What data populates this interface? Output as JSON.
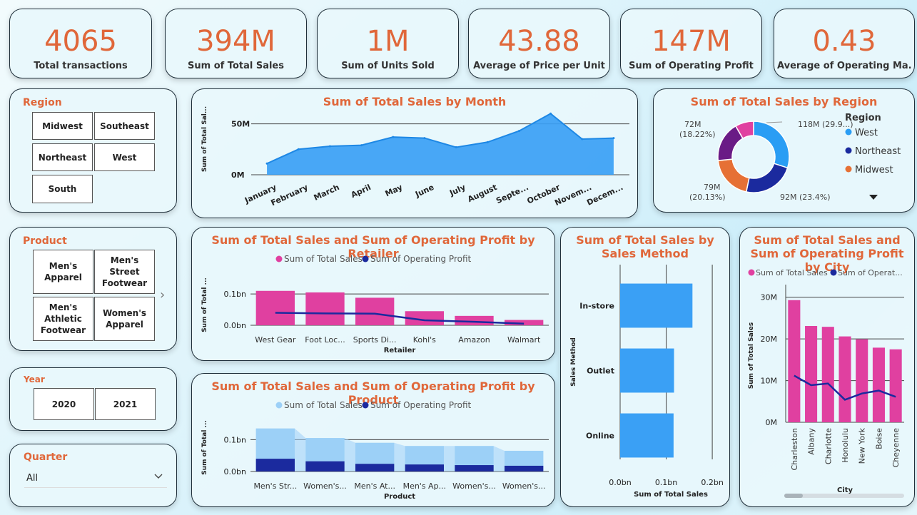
{
  "kpis": [
    {
      "value": "4065",
      "label": "Total transactions"
    },
    {
      "value": "394M",
      "label": "Sum of Total Sales"
    },
    {
      "value": "1M",
      "label": "Sum of Units Sold"
    },
    {
      "value": "43.88",
      "label": "Average of Price per Unit"
    },
    {
      "value": "147M",
      "label": "Sum of Operating Profit"
    },
    {
      "value": "0.43",
      "label": "Average of Operating Ma..."
    }
  ],
  "region_slicer": {
    "title": "Region",
    "options": [
      "Midwest",
      "Southeast",
      "Northeast",
      "West",
      "South"
    ]
  },
  "product_slicer": {
    "title": "Product",
    "options": [
      "Men's Apparel",
      "Men's Street Footwear",
      "Men's Athletic Footwear",
      "Women's Apparel"
    ]
  },
  "year_slicer": {
    "title": "Year",
    "options": [
      "2020",
      "2021"
    ]
  },
  "quarter_slicer": {
    "title": "Quarter",
    "value": "All"
  },
  "colors": {
    "accent": "#e0673a",
    "sales": "#e040a0",
    "profit": "#1b2a9e",
    "blue": "#3aa0f5",
    "light_blue": "#9cd0f7"
  },
  "chart_data": [
    {
      "id": "month",
      "type": "area",
      "title": "Sum of Total Sales by Month",
      "ylabel": "Sum of Total Sal...",
      "categories": [
        "January",
        "February",
        "March",
        "April",
        "May",
        "June",
        "July",
        "August",
        "Septe...",
        "October",
        "Novem...",
        "Decem..."
      ],
      "values": [
        11,
        25,
        28,
        29,
        37,
        36,
        27,
        32,
        43,
        60,
        35,
        36
      ],
      "ylim": [
        0,
        70
      ],
      "yticks": [
        {
          "v": 0,
          "label": "0M"
        },
        {
          "v": 50,
          "label": "50M"
        }
      ]
    },
    {
      "id": "region",
      "type": "pie",
      "title": "Sum of Total Sales by Region",
      "legend_title": "Region",
      "legend": [
        "West",
        "Northeast",
        "Midwest"
      ],
      "slices": [
        {
          "name": "West",
          "value": 118,
          "label": "118M (29.9...)",
          "color": "#2a9df4"
        },
        {
          "name": "Northeast",
          "value": 92,
          "label": "92M (23.4%)",
          "color": "#1b2a9e"
        },
        {
          "name": "Midwest",
          "value": 79,
          "label1": "79M",
          "label2": "(20.13%)",
          "color": "#e67035"
        },
        {
          "name": "South",
          "value": 72,
          "label1": "72M",
          "label2": "(18.22%)",
          "color": "#6a1b86"
        },
        {
          "name": "Southeast",
          "value": 33,
          "color": "#e040a0"
        }
      ]
    },
    {
      "id": "retailer",
      "type": "bar",
      "title": "Sum of Total Sales and Sum of Operating Profit by Retailer",
      "ylabel": "Sum of Total ...",
      "xlabel": "Retailer",
      "categories": [
        "West Gear",
        "Foot Loc...",
        "Sports Di...",
        "Kohl's",
        "Amazon",
        "Walmart"
      ],
      "series": [
        {
          "name": "Sum of Total Sales",
          "values": [
            0.11,
            0.105,
            0.088,
            0.045,
            0.03,
            0.017
          ]
        },
        {
          "name": "Sum of Operating Profit",
          "values": [
            0.04,
            0.038,
            0.037,
            0.016,
            0.011,
            0.005
          ]
        }
      ],
      "ylim": [
        0,
        0.13
      ],
      "yticks": [
        {
          "v": 0,
          "label": "0.0bn"
        },
        {
          "v": 0.1,
          "label": "0.1bn"
        }
      ]
    },
    {
      "id": "product",
      "type": "bar",
      "title": "Sum of Total Sales and Sum of Operating Profit by Product",
      "ylabel": "Sum of Total ...",
      "xlabel": "Product",
      "categories": [
        "Men's Str...",
        "Women's...",
        "Men's At...",
        "Men's Ap...",
        "Women's...",
        "Women's..."
      ],
      "series": [
        {
          "name": "Sum of Total Sales",
          "values": [
            0.135,
            0.105,
            0.09,
            0.08,
            0.08,
            0.065
          ]
        },
        {
          "name": "Sum of Operating Profit",
          "values": [
            0.04,
            0.032,
            0.024,
            0.022,
            0.02,
            0.018
          ]
        }
      ],
      "ylim": [
        0,
        0.15
      ],
      "yticks": [
        {
          "v": 0,
          "label": "0.0bn"
        },
        {
          "v": 0.1,
          "label": "0.1bn"
        }
      ]
    },
    {
      "id": "method",
      "type": "bar",
      "title": "Sum of Total Sales by Sales Method",
      "ylabel": "Sales Method",
      "xlabel": "Sum of Total Sales",
      "categories": [
        "In-store",
        "Outlet",
        "Online"
      ],
      "values": [
        0.157,
        0.117,
        0.116
      ],
      "xlim": [
        0,
        0.22
      ],
      "xticks": [
        {
          "v": 0,
          "label": "0.0bn"
        },
        {
          "v": 0.1,
          "label": "0.1bn"
        },
        {
          "v": 0.2,
          "label": "0.2bn"
        }
      ]
    },
    {
      "id": "city",
      "type": "bar",
      "title": "Sum of Total Sales and Sum of Operating Profit by City",
      "ylabel": "Sum of Total Sales",
      "xlabel": "City",
      "categories": [
        "Charleston",
        "Albany",
        "Charlotte",
        "Honolulu",
        "New York",
        "Boise",
        "Cheyenne"
      ],
      "series": [
        {
          "name": "Sum of Total Sales",
          "legend": "Sum of Total Sales",
          "values": [
            29.3,
            23.1,
            22.9,
            20.6,
            19.9,
            17.9,
            17.5
          ]
        },
        {
          "name": "Sum of Operating Profit",
          "legend": "Sum of Operat...",
          "values": [
            11.2,
            8.9,
            9.3,
            5.4,
            6.9,
            7.6,
            6.1
          ]
        }
      ],
      "ylim": [
        0,
        32
      ],
      "yticks": [
        {
          "v": 0,
          "label": "0M"
        },
        {
          "v": 10,
          "label": "10M"
        },
        {
          "v": 20,
          "label": "20M"
        },
        {
          "v": 30,
          "label": "30M"
        }
      ]
    }
  ]
}
